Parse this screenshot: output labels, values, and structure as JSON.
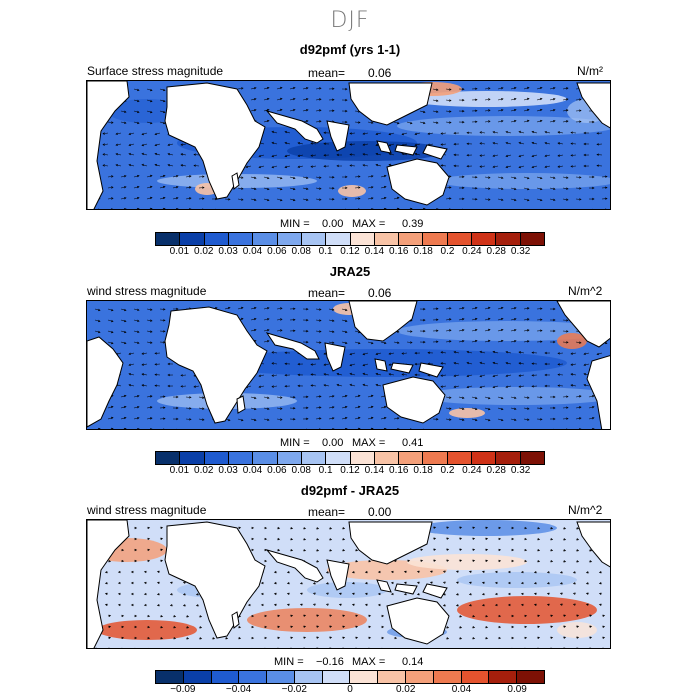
{
  "title": "DJF",
  "panels": [
    {
      "title": "d92pmf (yrs 1-1)",
      "left_label": "Surface stress magnitude",
      "mean_label": "mean=",
      "mean_value": "0.06",
      "units": "N/m²",
      "min_label": "MIN =",
      "min_value": "0.00",
      "max_label": "MAX =",
      "max_value": "0.39",
      "colorbar_ticks": [
        "0.01",
        "0.02",
        "0.03",
        "0.04",
        "0.06",
        "0.08",
        "0.1",
        "0.12",
        "0.14",
        "0.16",
        "0.18",
        "0.2",
        "0.24",
        "0.28",
        "0.32"
      ]
    },
    {
      "title": "JRA25",
      "left_label": "wind stress magnitude",
      "mean_label": "mean=",
      "mean_value": "0.06",
      "units": "N/m^2",
      "min_label": "MIN =",
      "min_value": "0.00",
      "max_label": "MAX =",
      "max_value": "0.41",
      "colorbar_ticks": [
        "0.01",
        "0.02",
        "0.03",
        "0.04",
        "0.06",
        "0.08",
        "0.1",
        "0.12",
        "0.14",
        "0.16",
        "0.18",
        "0.2",
        "0.24",
        "0.28",
        "0.32"
      ]
    },
    {
      "title": "d92pmf - JRA25",
      "left_label": "wind stress magnitude",
      "mean_label": "mean=",
      "mean_value": "0.00",
      "units": "N/m^2",
      "min_label": "MIN =",
      "min_value": "−0.16",
      "max_label": "MAX =",
      "max_value": "0.14",
      "colorbar_ticks": [
        "−0.09",
        "−0.04",
        "−0.02",
        "0",
        "0.02",
        "0.04",
        "0.09"
      ]
    }
  ],
  "colors": {
    "seq": [
      "#08306b",
      "#0a3fa8",
      "#1f5bd0",
      "#3a73de",
      "#5a8ee6",
      "#7ea8ee",
      "#a7c4f3",
      "#d0def8",
      "#fbe3d6",
      "#f8c3a6",
      "#f4a07a",
      "#ee7a50",
      "#e4532e",
      "#cf3217",
      "#a51f0c",
      "#7d1105"
    ],
    "div": [
      "#08306b",
      "#0a3fa8",
      "#1f5bd0",
      "#3a73de",
      "#5a8ee6",
      "#a7c4f3",
      "#d0def8",
      "#fbe3d6",
      "#f8c3a6",
      "#f4a07a",
      "#ee7a50",
      "#e4532e",
      "#a51f0c",
      "#7d1105"
    ]
  }
}
